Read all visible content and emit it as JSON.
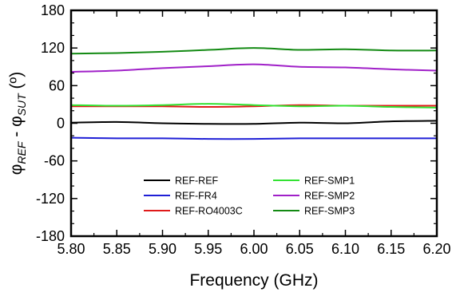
{
  "chart_data": {
    "type": "line",
    "title": "",
    "xlabel": "Frequency (GHz)",
    "ylabel": {
      "phi1": "φ",
      "sub1": "REF",
      "mid": " - φ",
      "sub2": "SUT",
      "unit": " (º)"
    },
    "xlim": [
      5.8,
      6.2
    ],
    "ylim": [
      -180,
      180
    ],
    "x_ticks": [
      "5.80",
      "5.85",
      "5.90",
      "5.95",
      "6.00",
      "6.05",
      "6.10",
      "6.15",
      "6.20"
    ],
    "y_ticks": [
      "180",
      "120",
      "60",
      "0",
      "-60",
      "-120",
      "-180"
    ],
    "grid": false,
    "legend_position": "bottom-center",
    "series": [
      {
        "name": "REF-REF",
        "color": "#000000",
        "x": [
          5.8,
          5.85,
          5.9,
          5.95,
          6.0,
          6.05,
          6.1,
          6.15,
          6.2
        ],
        "y": [
          1,
          2,
          0,
          -1,
          -1,
          1,
          0,
          3,
          4
        ]
      },
      {
        "name": "REF-FR4",
        "color": "#1f1fd6",
        "x": [
          5.8,
          5.85,
          5.9,
          5.95,
          6.0,
          6.05,
          6.1,
          6.15,
          6.2
        ],
        "y": [
          -23,
          -24,
          -24,
          -25,
          -25,
          -24,
          -24,
          -24,
          -24
        ]
      },
      {
        "name": "REF-RO4003C",
        "color": "#e01a1a",
        "x": [
          5.8,
          5.85,
          5.9,
          5.95,
          6.0,
          6.05,
          6.1,
          6.15,
          6.2
        ],
        "y": [
          27,
          27,
          27,
          26,
          27,
          29,
          28,
          28,
          28
        ]
      },
      {
        "name": "REF-SMP1",
        "color": "#33e233",
        "x": [
          5.8,
          5.85,
          5.9,
          5.95,
          6.0,
          6.05,
          6.1,
          6.15,
          6.2
        ],
        "y": [
          29,
          28,
          29,
          31,
          29,
          27,
          28,
          26,
          25
        ]
      },
      {
        "name": "REF-SMP2",
        "color": "#a020c8",
        "x": [
          5.8,
          5.85,
          5.9,
          5.95,
          6.0,
          6.05,
          6.1,
          6.15,
          6.2
        ],
        "y": [
          82,
          84,
          88,
          91,
          94,
          90,
          89,
          86,
          84
        ]
      },
      {
        "name": "REF-SMP3",
        "color": "#138a13",
        "x": [
          5.8,
          5.85,
          5.9,
          5.95,
          6.0,
          6.05,
          6.1,
          6.15,
          6.2
        ],
        "y": [
          111,
          112,
          114,
          117,
          120,
          117,
          118,
          116,
          116
        ]
      }
    ]
  }
}
